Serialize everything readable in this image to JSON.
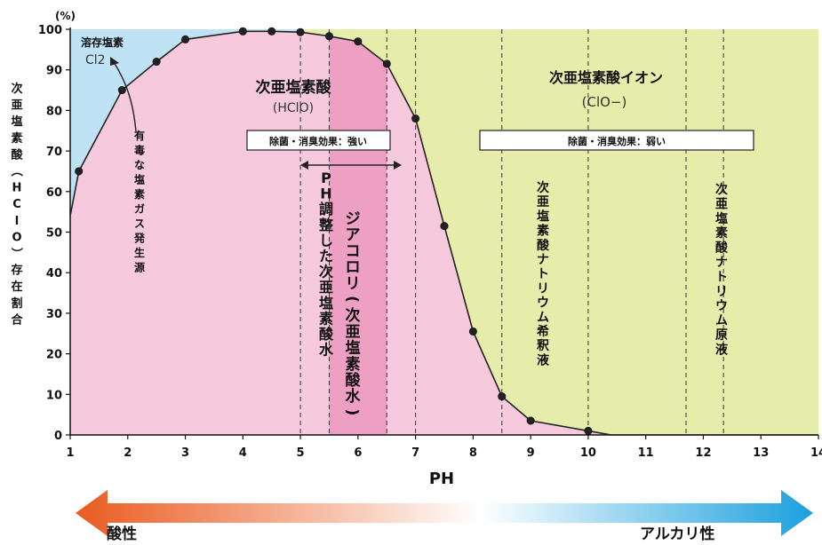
{
  "chart_data": {
    "type": "area",
    "ylabel_unit": "(%)",
    "ylabel": "次亜塩素酸（HClO）存在割合",
    "xlabel": "PH",
    "xlim": [
      1,
      14
    ],
    "ylim": [
      0,
      100
    ],
    "xticks": [
      1,
      2,
      3,
      4,
      5,
      6,
      7,
      8,
      9,
      10,
      11,
      12,
      13,
      14
    ],
    "yticks": [
      0,
      10,
      20,
      30,
      40,
      50,
      60,
      70,
      80,
      90,
      100
    ],
    "series": [
      {
        "x": [
          1.0,
          1.15,
          1.9,
          2.5,
          3.0,
          4.0,
          4.5,
          5.0,
          5.5,
          6.0,
          6.5,
          7.0,
          7.5,
          8.0,
          8.5,
          9.0,
          10.0,
          10.4,
          14.0
        ],
        "y": [
          54,
          65,
          85,
          92,
          97.5,
          99.5,
          99.5,
          99.3,
          98.3,
          97,
          91.5,
          78,
          51.5,
          25.5,
          9.5,
          3.5,
          1,
          0,
          0
        ]
      }
    ],
    "regions": {
      "cl2_label": "溶存塩素",
      "cl2_formula": "Cl2",
      "hclo_label": "次亜塩素酸",
      "hclo_formula": "(HClO)",
      "clo_label": "次亜塩素酸イオン",
      "clo_formula": "(ClO−)"
    },
    "annotations": {
      "toxic_gas": "有毒な塩素ガス発生源",
      "effect_strong": "除菌・消臭効果：強い",
      "effect_weak": "除菌・消臭効果：弱い",
      "ph_adjusted": "PH調整した次亜塩素酸水",
      "jiakorori": "ジアコロリ(次亜塩素酸水)",
      "dilute": "次亜塩素酸ナトリウム希釈液",
      "stock": "次亜塩素酸ナトリウム原液"
    },
    "dashed_lines_x": [
      5.0,
      5.5,
      6.5,
      7.0,
      8.5,
      10.0,
      11.7,
      12.35
    ],
    "band_x": [
      5.5,
      6.5
    ],
    "arrow": {
      "left": "酸性",
      "right": "アルカリ性"
    },
    "grid": false
  },
  "colors": {
    "cl2_region": "#bfe3f5",
    "hclo_region": "#f7c9dd",
    "clo_region": "#e6ecaa",
    "band": "#ee9fc4",
    "curve": "#222222",
    "point": "#d7e37a",
    "arrow_left": "#ea5a1f",
    "arrow_mid": "#ffffff",
    "arrow_right": "#1aa0de"
  }
}
